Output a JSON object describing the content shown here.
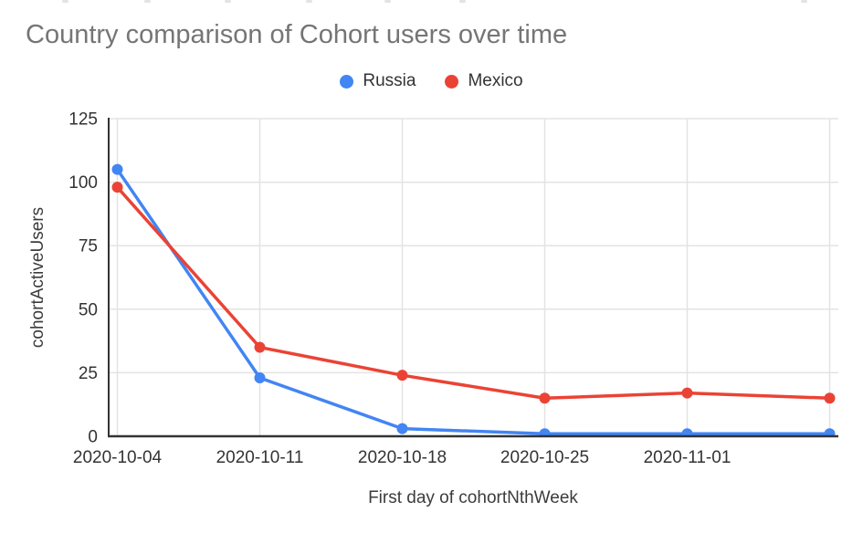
{
  "header": {
    "title": "Country comparison of Cohort users over time",
    "title_color": "#757575"
  },
  "legend": {
    "position": "top-center",
    "items": [
      {
        "label": "Russia",
        "color": "#4285F4"
      },
      {
        "label": "Mexico",
        "color": "#EA4335"
      }
    ]
  },
  "chart_data": {
    "type": "line",
    "title": "Country comparison of Cohort users over time",
    "xlabel": "First day of cohortNthWeek",
    "ylabel": "cohortActiveUsers",
    "categories": [
      "2020-10-04",
      "2020-10-11",
      "2020-10-18",
      "2020-10-25",
      "2020-11-01",
      ""
    ],
    "series": [
      {
        "name": "Russia",
        "color": "#4285F4",
        "values": [
          105,
          23,
          3,
          1,
          1,
          1
        ]
      },
      {
        "name": "Mexico",
        "color": "#EA4335",
        "values": [
          98,
          35,
          24,
          15,
          17,
          15
        ]
      }
    ],
    "ylim": [
      0,
      125
    ],
    "yticks": [
      0,
      25,
      50,
      75,
      100,
      125
    ],
    "grid": true,
    "legend_position": "top",
    "colors": {
      "gridline": "#e3e3e3",
      "axis_line": "#333333",
      "tick_label": "#333333",
      "axis_title": "#3c3c3c"
    }
  }
}
